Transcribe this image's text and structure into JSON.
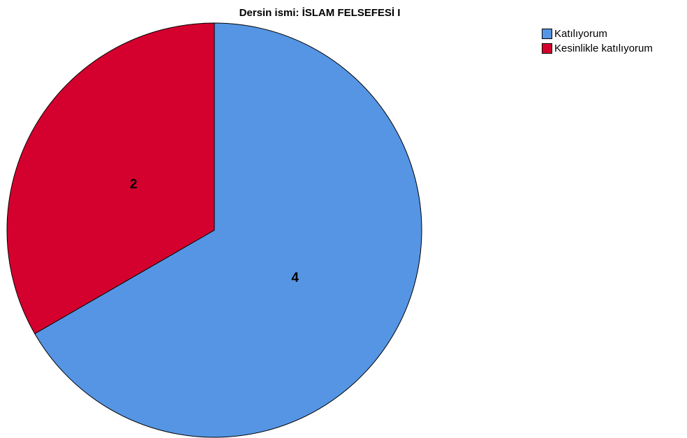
{
  "chart_data": {
    "type": "pie",
    "title": "Dersin ismi: İSLAM FELSEFESİ I",
    "legend_position": "top-right",
    "slices": [
      {
        "label": "Katılıyorum",
        "value": 4,
        "color": "#5595E4"
      },
      {
        "label": "Kesinlikle katılıyorum",
        "value": 2,
        "color": "#D4002E"
      }
    ]
  }
}
